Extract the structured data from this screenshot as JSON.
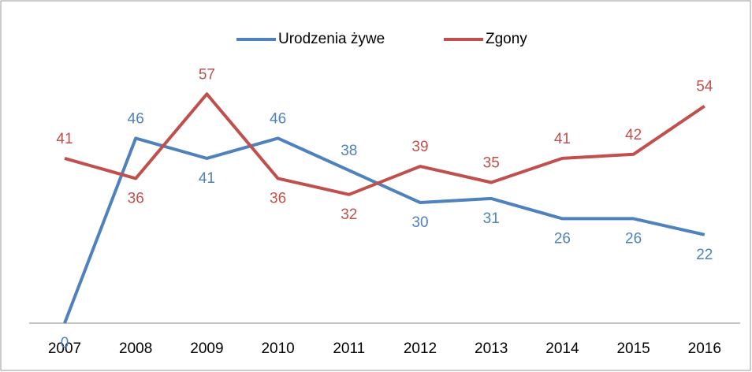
{
  "chart_data": {
    "type": "line",
    "categories": [
      "2007",
      "2008",
      "2009",
      "2010",
      "2011",
      "2012",
      "2013",
      "2014",
      "2015",
      "2016"
    ],
    "series": [
      {
        "name": "Urodzenia żywe",
        "color": "#4f81bd",
        "values": [
          0,
          46,
          41,
          46,
          38,
          30,
          31,
          26,
          26,
          22
        ]
      },
      {
        "name": "Zgony",
        "color": "#c0504d",
        "values": [
          41,
          36,
          57,
          36,
          32,
          39,
          35,
          41,
          42,
          54
        ]
      }
    ],
    "ylim": [
      0,
      60
    ],
    "legend": "top"
  }
}
